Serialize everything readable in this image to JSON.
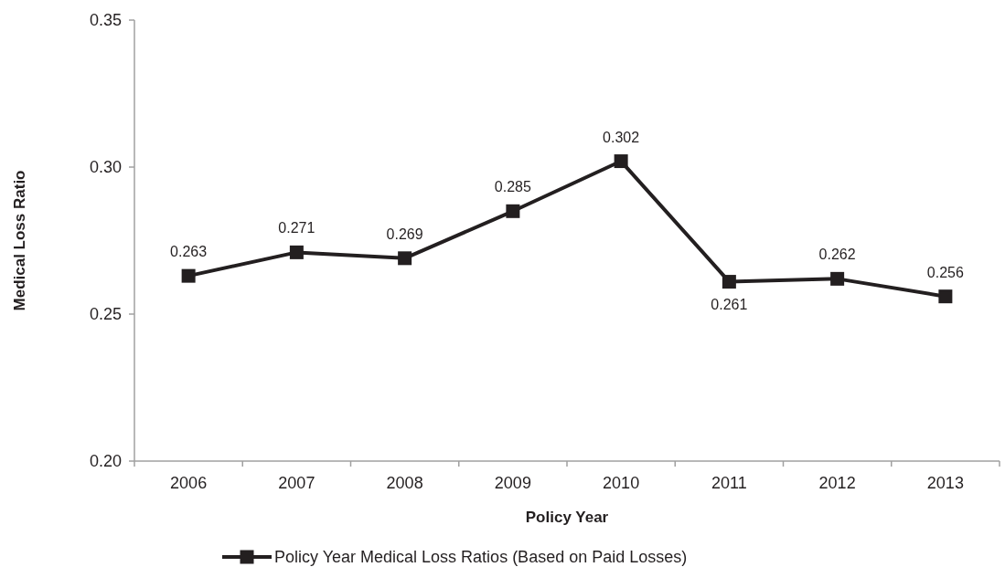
{
  "chart_data": {
    "type": "line",
    "xlabel": "Policy Year",
    "ylabel": "Medical Loss Ratio",
    "categories": [
      "2006",
      "2007",
      "2008",
      "2009",
      "2010",
      "2011",
      "2012",
      "2013"
    ],
    "series": [
      {
        "name": "Policy Year Medical Loss Ratios (Based on Paid Losses)",
        "color": "#231f20",
        "values": [
          0.263,
          0.271,
          0.269,
          0.285,
          0.302,
          0.261,
          0.262,
          0.256
        ]
      }
    ],
    "ylim": [
      0.2,
      0.35
    ],
    "yticks": [
      {
        "value": 0.2,
        "label": "0.20"
      },
      {
        "value": 0.25,
        "label": "0.25"
      },
      {
        "value": 0.3,
        "label": "0.30"
      },
      {
        "value": 0.35,
        "label": "0.35"
      }
    ],
    "data_labels": true,
    "marker": "square",
    "legend": "bottom",
    "grid": false
  }
}
